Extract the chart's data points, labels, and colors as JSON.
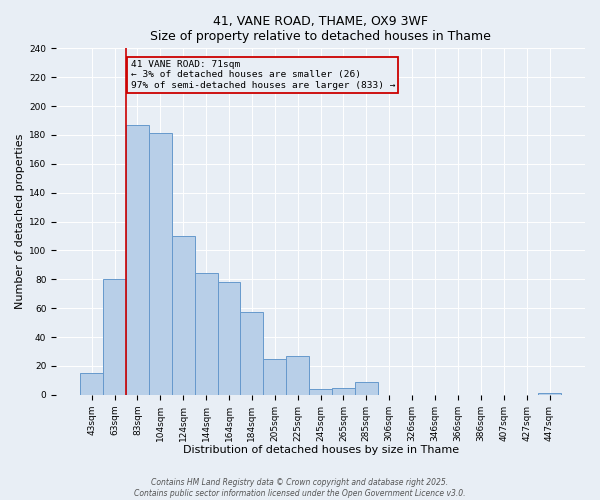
{
  "title": "41, VANE ROAD, THAME, OX9 3WF",
  "subtitle": "Size of property relative to detached houses in Thame",
  "xlabel": "Distribution of detached houses by size in Thame",
  "ylabel": "Number of detached properties",
  "bar_labels": [
    "43sqm",
    "63sqm",
    "83sqm",
    "104sqm",
    "124sqm",
    "144sqm",
    "164sqm",
    "184sqm",
    "205sqm",
    "225sqm",
    "245sqm",
    "265sqm",
    "285sqm",
    "306sqm",
    "326sqm",
    "346sqm",
    "366sqm",
    "386sqm",
    "407sqm",
    "427sqm",
    "447sqm"
  ],
  "bar_values": [
    15,
    80,
    187,
    181,
    110,
    84,
    78,
    57,
    25,
    27,
    4,
    5,
    9,
    0,
    0,
    0,
    0,
    0,
    0,
    0,
    1
  ],
  "bar_color": "#b8cfe8",
  "bar_edge_color": "#6699cc",
  "vline_color": "#cc0000",
  "vline_x_index": 1.5,
  "ylim": [
    0,
    240
  ],
  "yticks": [
    0,
    20,
    40,
    60,
    80,
    100,
    120,
    140,
    160,
    180,
    200,
    220,
    240
  ],
  "annotation_title": "41 VANE ROAD: 71sqm",
  "annotation_line1": "← 3% of detached houses are smaller (26)",
  "annotation_line2": "97% of semi-detached houses are larger (833) →",
  "annotation_box_color": "#cc0000",
  "annotation_bg_color": "#e8eef5",
  "bg_color": "#e8eef5",
  "grid_color": "#ffffff",
  "title_fontsize": 9,
  "tick_fontsize": 6.5,
  "label_fontsize": 8,
  "annotation_fontsize": 6.8,
  "footer_line1": "Contains HM Land Registry data © Crown copyright and database right 2025.",
  "footer_line2": "Contains public sector information licensed under the Open Government Licence v3.0."
}
